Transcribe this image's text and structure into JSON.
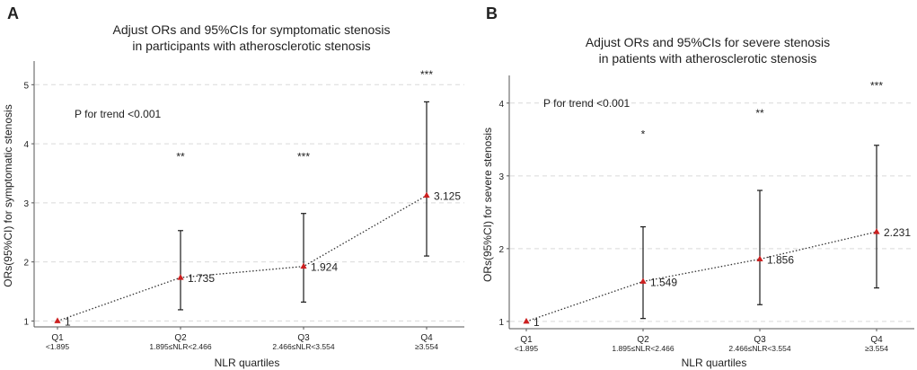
{
  "chart_data": [
    {
      "panel_label": "A",
      "type": "line",
      "title_lines": [
        "Adjust ORs and 95%CIs for symptomatic stenosis",
        "in participants with atherosclerotic stenosis"
      ],
      "xlabel": "NLR quartiles",
      "ylabel": "ORs(95%CI) for symptomatic stenosis",
      "ylim": [
        0.9,
        5.4
      ],
      "yticks": [
        1,
        2,
        3,
        4,
        5
      ],
      "grid": "horizontal-dashed",
      "categories": [
        {
          "name": "Q1",
          "range": "<1.895"
        },
        {
          "name": "Q2",
          "range": "1.895≤NLR<2.466"
        },
        {
          "name": "Q3",
          "range": "2.466≤NLR<3.554"
        },
        {
          "name": "Q4",
          "range": "≥3.554"
        }
      ],
      "points": [
        {
          "or": 1,
          "label": "1",
          "lower": null,
          "upper": null,
          "sig": ""
        },
        {
          "or": 1.735,
          "label": "1.735",
          "lower": 1.19,
          "upper": 2.53,
          "sig": "**"
        },
        {
          "or": 1.924,
          "label": "1.924",
          "lower": 1.32,
          "upper": 2.82,
          "sig": "***"
        },
        {
          "or": 3.125,
          "label": "3.125",
          "lower": 2.1,
          "upper": 4.71,
          "sig": "***"
        }
      ],
      "sig_y": [
        null,
        3.78,
        3.78,
        5.17
      ],
      "annotation": {
        "text": "P for trend <0.001",
        "x": 0.1,
        "y": 4.5
      }
    },
    {
      "panel_label": "B",
      "type": "line",
      "title_lines": [
        "Adjust ORs and 95%CIs for severe stenosis",
        "in patients with atherosclerotic stenosis"
      ],
      "xlabel": "NLR quartiles",
      "ylabel": "ORs(95%CI) for severe stenosis",
      "ylim": [
        0.9,
        4.38
      ],
      "yticks": [
        1,
        2,
        3,
        4
      ],
      "grid": "horizontal-dashed",
      "categories": [
        {
          "name": "Q1",
          "range": "<1.895"
        },
        {
          "name": "Q2",
          "range": "1.895≤NLR<2.466"
        },
        {
          "name": "Q3",
          "range": "2.466≤NLR<3.554"
        },
        {
          "name": "Q4",
          "range": "≥3.554"
        }
      ],
      "points": [
        {
          "or": 1,
          "label": "1",
          "lower": null,
          "upper": null,
          "sig": ""
        },
        {
          "or": 1.549,
          "label": "1.549",
          "lower": 1.04,
          "upper": 2.3,
          "sig": "*"
        },
        {
          "or": 1.856,
          "label": "1.856",
          "lower": 1.23,
          "upper": 2.8,
          "sig": "**"
        },
        {
          "or": 2.231,
          "label": "2.231",
          "lower": 1.46,
          "upper": 3.42,
          "sig": "***"
        }
      ],
      "sig_y": [
        null,
        3.57,
        3.86,
        4.24
      ],
      "annotation": {
        "text": "P for trend <0.001",
        "x": 0.1,
        "y": 4.0
      }
    }
  ],
  "colors": {
    "point": "#cc1f1f",
    "errorbar": "#1a1a1a",
    "trend_line": "#333333",
    "grid": "#d9d9d9",
    "axis": "#555555",
    "text": "#222222"
  }
}
